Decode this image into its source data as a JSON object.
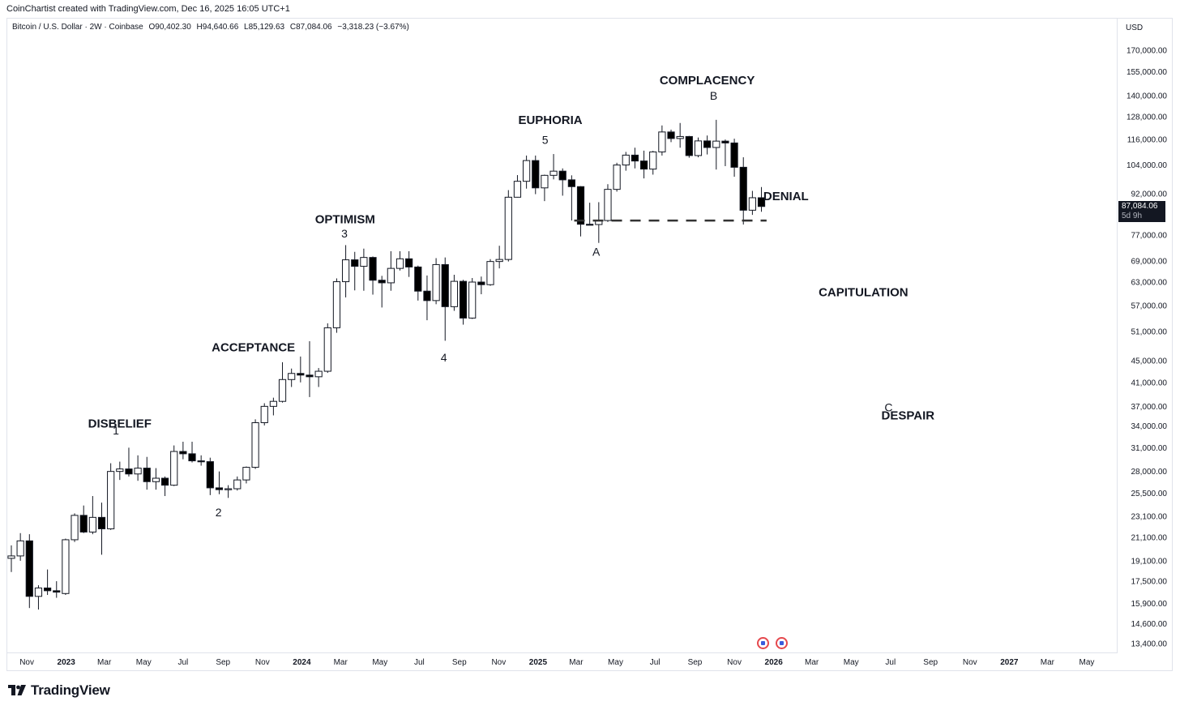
{
  "credit": "CoinChartist created with TradingView.com, Dec 16, 2025 16:05 UTC+1",
  "legend": {
    "symbol": "Bitcoin / U.S. Dollar · 2W · Coinbase",
    "open": "O90,402.30",
    "high": "H94,640.66",
    "low": "L85,129.63",
    "close": "C87,084.06",
    "change": "−3,318.23 (−3.67%)"
  },
  "currency": "USD",
  "last_price": {
    "value": "87,084.06",
    "countdown": "5d 9h"
  },
  "brand": "TradingView",
  "chart_data": {
    "type": "candlestick",
    "scale": "log",
    "ylim": [
      13000,
      185000
    ],
    "y_ticks": [
      170000,
      155000,
      140000,
      128000,
      116000,
      104000,
      92000,
      77000,
      69000,
      63000,
      57000,
      51000,
      45000,
      41000,
      37000,
      34000,
      31000,
      28000,
      25500,
      23100,
      21100,
      19100,
      17500,
      15900,
      14600,
      13400
    ],
    "y_tick_labels": [
      "170,000.00",
      "155,000.00",
      "140,000.00",
      "128,000.00",
      "116,000.00",
      "104,000.00",
      "92,000.00",
      "77,000.00",
      "69,000.00",
      "63,000.00",
      "57,000.00",
      "51,000.00",
      "45,000.00",
      "41,000.00",
      "37,000.00",
      "34,000.00",
      "31,000.00",
      "28,000.00",
      "25,500.00",
      "23,100.00",
      "21,100.00",
      "19,100.00",
      "17,500.00",
      "15,900.00",
      "14,600.00",
      "13,400.00"
    ],
    "x_start": "2022-10-03",
    "x_end": "2027-06-14",
    "x_ticks": [
      {
        "date": "2022-11-01",
        "label": "Nov",
        "bold": false
      },
      {
        "date": "2023-01-01",
        "label": "2023",
        "bold": true
      },
      {
        "date": "2023-03-01",
        "label": "Mar",
        "bold": false
      },
      {
        "date": "2023-05-01",
        "label": "May",
        "bold": false
      },
      {
        "date": "2023-07-01",
        "label": "Jul",
        "bold": false
      },
      {
        "date": "2023-09-01",
        "label": "Sep",
        "bold": false
      },
      {
        "date": "2023-11-01",
        "label": "Nov",
        "bold": false
      },
      {
        "date": "2024-01-01",
        "label": "2024",
        "bold": true
      },
      {
        "date": "2024-03-01",
        "label": "Mar",
        "bold": false
      },
      {
        "date": "2024-05-01",
        "label": "May",
        "bold": false
      },
      {
        "date": "2024-07-01",
        "label": "Jul",
        "bold": false
      },
      {
        "date": "2024-09-01",
        "label": "Sep",
        "bold": false
      },
      {
        "date": "2024-11-01",
        "label": "Nov",
        "bold": false
      },
      {
        "date": "2025-01-01",
        "label": "2025",
        "bold": true
      },
      {
        "date": "2025-03-01",
        "label": "Mar",
        "bold": false
      },
      {
        "date": "2025-05-01",
        "label": "May",
        "bold": false
      },
      {
        "date": "2025-07-01",
        "label": "Jul",
        "bold": false
      },
      {
        "date": "2025-09-01",
        "label": "Sep",
        "bold": false
      },
      {
        "date": "2025-11-01",
        "label": "Nov",
        "bold": false
      },
      {
        "date": "2026-01-01",
        "label": "2026",
        "bold": true
      },
      {
        "date": "2026-03-01",
        "label": "Mar",
        "bold": false
      },
      {
        "date": "2026-05-01",
        "label": "May",
        "bold": false
      },
      {
        "date": "2026-07-01",
        "label": "Jul",
        "bold": false
      },
      {
        "date": "2026-09-01",
        "label": "Sep",
        "bold": false
      },
      {
        "date": "2026-11-01",
        "label": "Nov",
        "bold": false
      },
      {
        "date": "2027-01-01",
        "label": "2027",
        "bold": true
      },
      {
        "date": "2027-03-01",
        "label": "Mar",
        "bold": false
      },
      {
        "date": "2027-05-01",
        "label": "May",
        "bold": false
      }
    ],
    "candles": [
      {
        "t": "2022-10-03",
        "o": 19300,
        "h": 20400,
        "l": 18200,
        "c": 19500
      },
      {
        "t": "2022-10-17",
        "o": 19500,
        "h": 21500,
        "l": 19100,
        "c": 20800
      },
      {
        "t": "2022-10-31",
        "o": 20800,
        "h": 21400,
        "l": 15600,
        "c": 16400
      },
      {
        "t": "2022-11-14",
        "o": 16400,
        "h": 17200,
        "l": 15500,
        "c": 17000
      },
      {
        "t": "2022-11-28",
        "o": 17000,
        "h": 18400,
        "l": 16500,
        "c": 16800
      },
      {
        "t": "2022-12-12",
        "o": 16800,
        "h": 17500,
        "l": 16300,
        "c": 16700
      },
      {
        "t": "2022-12-26",
        "o": 16600,
        "h": 21000,
        "l": 16500,
        "c": 20900
      },
      {
        "t": "2023-01-09",
        "o": 20900,
        "h": 23400,
        "l": 20700,
        "c": 23200
      },
      {
        "t": "2023-01-23",
        "o": 23200,
        "h": 24200,
        "l": 21500,
        "c": 21600
      },
      {
        "t": "2023-02-06",
        "o": 21600,
        "h": 25200,
        "l": 21400,
        "c": 23000
      },
      {
        "t": "2023-02-20",
        "o": 23000,
        "h": 24500,
        "l": 19600,
        "c": 21900
      },
      {
        "t": "2023-03-06",
        "o": 21900,
        "h": 29000,
        "l": 21800,
        "c": 28000
      },
      {
        "t": "2023-03-20",
        "o": 28000,
        "h": 29200,
        "l": 27000,
        "c": 28300
      },
      {
        "t": "2023-04-03",
        "o": 28300,
        "h": 31000,
        "l": 27400,
        "c": 27700
      },
      {
        "t": "2023-04-17",
        "o": 27700,
        "h": 30000,
        "l": 26900,
        "c": 28400
      },
      {
        "t": "2023-05-01",
        "o": 28400,
        "h": 29800,
        "l": 25900,
        "c": 26800
      },
      {
        "t": "2023-05-15",
        "o": 26800,
        "h": 28400,
        "l": 25900,
        "c": 27200
      },
      {
        "t": "2023-05-29",
        "o": 27200,
        "h": 27400,
        "l": 25200,
        "c": 26400
      },
      {
        "t": "2023-06-12",
        "o": 26400,
        "h": 31300,
        "l": 26300,
        "c": 30500
      },
      {
        "t": "2023-06-26",
        "o": 30500,
        "h": 31800,
        "l": 29500,
        "c": 30200
      },
      {
        "t": "2023-07-10",
        "o": 30200,
        "h": 31800,
        "l": 29100,
        "c": 29300
      },
      {
        "t": "2023-07-24",
        "o": 29300,
        "h": 30000,
        "l": 28700,
        "c": 29200
      },
      {
        "t": "2023-08-07",
        "o": 29200,
        "h": 29700,
        "l": 25300,
        "c": 26100
      },
      {
        "t": "2023-08-21",
        "o": 26100,
        "h": 28000,
        "l": 25400,
        "c": 25900
      },
      {
        "t": "2023-09-04",
        "o": 25900,
        "h": 26400,
        "l": 25000,
        "c": 26000
      },
      {
        "t": "2023-09-18",
        "o": 26000,
        "h": 27400,
        "l": 25800,
        "c": 27000
      },
      {
        "t": "2023-10-02",
        "o": 27000,
        "h": 28600,
        "l": 26600,
        "c": 28500
      },
      {
        "t": "2023-10-16",
        "o": 28500,
        "h": 35000,
        "l": 28300,
        "c": 34500
      },
      {
        "t": "2023-10-30",
        "o": 34500,
        "h": 37500,
        "l": 34100,
        "c": 37000
      },
      {
        "t": "2023-11-13",
        "o": 37000,
        "h": 38400,
        "l": 35600,
        "c": 37800
      },
      {
        "t": "2023-11-27",
        "o": 37800,
        "h": 44700,
        "l": 37600,
        "c": 41500
      },
      {
        "t": "2023-12-11",
        "o": 41500,
        "h": 43500,
        "l": 40200,
        "c": 42600
      },
      {
        "t": "2023-12-25",
        "o": 42600,
        "h": 45800,
        "l": 41000,
        "c": 42300
      },
      {
        "t": "2024-01-08",
        "o": 42300,
        "h": 48900,
        "l": 38500,
        "c": 42000
      },
      {
        "t": "2024-01-22",
        "o": 42000,
        "h": 43600,
        "l": 40200,
        "c": 43000
      },
      {
        "t": "2024-02-05",
        "o": 43000,
        "h": 52800,
        "l": 42700,
        "c": 51800
      },
      {
        "t": "2024-02-19",
        "o": 51800,
        "h": 64000,
        "l": 50700,
        "c": 63100
      },
      {
        "t": "2024-03-04",
        "o": 63100,
        "h": 73800,
        "l": 59000,
        "c": 69300
      },
      {
        "t": "2024-03-18",
        "o": 69300,
        "h": 71700,
        "l": 60800,
        "c": 67400
      },
      {
        "t": "2024-04-01",
        "o": 67400,
        "h": 72700,
        "l": 60700,
        "c": 70000
      },
      {
        "t": "2024-04-15",
        "o": 70000,
        "h": 70300,
        "l": 59700,
        "c": 63500
      },
      {
        "t": "2024-04-29",
        "o": 63500,
        "h": 64700,
        "l": 56500,
        "c": 62800
      },
      {
        "t": "2024-05-13",
        "o": 62800,
        "h": 71900,
        "l": 60700,
        "c": 66800
      },
      {
        "t": "2024-05-27",
        "o": 66800,
        "h": 71900,
        "l": 66200,
        "c": 69600
      },
      {
        "t": "2024-06-10",
        "o": 69600,
        "h": 71900,
        "l": 64400,
        "c": 67200
      },
      {
        "t": "2024-06-24",
        "o": 67200,
        "h": 67600,
        "l": 58200,
        "c": 60600
      },
      {
        "t": "2024-07-08",
        "o": 60600,
        "h": 64800,
        "l": 53500,
        "c": 58200
      },
      {
        "t": "2024-07-22",
        "o": 58200,
        "h": 69800,
        "l": 57300,
        "c": 67900
      },
      {
        "t": "2024-08-05",
        "o": 67900,
        "h": 70000,
        "l": 49000,
        "c": 56700
      },
      {
        "t": "2024-08-19",
        "o": 56700,
        "h": 65000,
        "l": 55700,
        "c": 63200
      },
      {
        "t": "2024-09-02",
        "o": 63200,
        "h": 63600,
        "l": 52500,
        "c": 54000
      },
      {
        "t": "2024-09-16",
        "o": 54000,
        "h": 64100,
        "l": 53800,
        "c": 63000
      },
      {
        "t": "2024-09-30",
        "o": 63000,
        "h": 64500,
        "l": 59800,
        "c": 62300
      },
      {
        "t": "2024-10-14",
        "o": 62300,
        "h": 69500,
        "l": 62000,
        "c": 68800
      },
      {
        "t": "2024-10-28",
        "o": 68800,
        "h": 73600,
        "l": 66800,
        "c": 69400
      },
      {
        "t": "2024-11-11",
        "o": 69400,
        "h": 93400,
        "l": 68800,
        "c": 90600
      },
      {
        "t": "2024-11-25",
        "o": 90600,
        "h": 99600,
        "l": 90500,
        "c": 97000
      },
      {
        "t": "2024-12-09",
        "o": 97000,
        "h": 108300,
        "l": 94000,
        "c": 106000
      },
      {
        "t": "2024-12-23",
        "o": 106000,
        "h": 108300,
        "l": 91800,
        "c": 94300
      },
      {
        "t": "2025-01-06",
        "o": 94300,
        "h": 99800,
        "l": 89100,
        "c": 99500
      },
      {
        "t": "2025-01-20",
        "o": 99500,
        "h": 109000,
        "l": 97800,
        "c": 101300
      },
      {
        "t": "2025-02-03",
        "o": 101300,
        "h": 102500,
        "l": 91200,
        "c": 97600
      },
      {
        "t": "2025-02-17",
        "o": 97600,
        "h": 99500,
        "l": 82000,
        "c": 94800
      },
      {
        "t": "2025-03-03",
        "o": 94800,
        "h": 95000,
        "l": 76600,
        "c": 80700
      },
      {
        "t": "2025-03-17",
        "o": 80700,
        "h": 88500,
        "l": 80500,
        "c": 80600
      },
      {
        "t": "2025-03-31",
        "o": 80600,
        "h": 88700,
        "l": 74500,
        "c": 82000
      },
      {
        "t": "2025-04-14",
        "o": 82000,
        "h": 95800,
        "l": 81500,
        "c": 93700
      },
      {
        "t": "2025-04-28",
        "o": 93700,
        "h": 105000,
        "l": 92800,
        "c": 104000
      },
      {
        "t": "2025-05-12",
        "o": 104000,
        "h": 110000,
        "l": 101500,
        "c": 108500
      },
      {
        "t": "2025-05-26",
        "o": 108500,
        "h": 112000,
        "l": 102500,
        "c": 105800
      },
      {
        "t": "2025-06-09",
        "o": 105800,
        "h": 110600,
        "l": 98200,
        "c": 102200
      },
      {
        "t": "2025-06-23",
        "o": 102200,
        "h": 110500,
        "l": 99800,
        "c": 110000
      },
      {
        "t": "2025-07-07",
        "o": 110000,
        "h": 123200,
        "l": 108300,
        "c": 119800
      },
      {
        "t": "2025-07-21",
        "o": 119800,
        "h": 121000,
        "l": 114700,
        "c": 116500
      },
      {
        "t": "2025-08-04",
        "o": 116500,
        "h": 124500,
        "l": 112000,
        "c": 117500
      },
      {
        "t": "2025-08-18",
        "o": 117500,
        "h": 117800,
        "l": 107300,
        "c": 108300
      },
      {
        "t": "2025-09-01",
        "o": 108300,
        "h": 117000,
        "l": 107500,
        "c": 115300
      },
      {
        "t": "2025-09-15",
        "o": 115300,
        "h": 118000,
        "l": 108800,
        "c": 112100
      },
      {
        "t": "2025-09-29",
        "o": 112100,
        "h": 126200,
        "l": 102000,
        "c": 115200
      },
      {
        "t": "2025-10-13",
        "o": 115200,
        "h": 116000,
        "l": 103500,
        "c": 114300
      },
      {
        "t": "2025-10-27",
        "o": 114300,
        "h": 116400,
        "l": 98900,
        "c": 103000
      },
      {
        "t": "2025-11-10",
        "o": 103000,
        "h": 107500,
        "l": 80600,
        "c": 85700
      },
      {
        "t": "2025-11-24",
        "o": 85700,
        "h": 93100,
        "l": 84000,
        "c": 90400
      },
      {
        "t": "2025-12-08",
        "o": 90400,
        "h": 94640,
        "l": 85130,
        "c": 87084
      }
    ],
    "support_line": {
      "price": 82000,
      "from": "2025-03-03",
      "to": "2025-12-31"
    },
    "phase_labels": [
      {
        "text": "DISBELIEF",
        "date": "2023-03-25",
        "price": 33800
      },
      {
        "text": "ACCEPTANCE",
        "date": "2023-10-18",
        "price": 46800
      },
      {
        "text": "OPTIMISM",
        "date": "2024-03-08",
        "price": 81000
      },
      {
        "text": "EUPHORIA",
        "date": "2025-01-20",
        "price": 124000
      },
      {
        "text": "COMPLACENCY",
        "date": "2025-09-20",
        "price": 147000
      },
      {
        "text": "DENIAL",
        "date": "2026-01-20",
        "price": 89500
      },
      {
        "text": "CAPITULATION",
        "date": "2026-05-20",
        "price": 59300
      },
      {
        "text": "DESPAIR",
        "date": "2026-07-28",
        "price": 35000
      }
    ],
    "wave_labels": [
      {
        "text": "1",
        "date": "2023-03-19",
        "price": 32800
      },
      {
        "text": "2",
        "date": "2023-08-25",
        "price": 23100
      },
      {
        "text": "3",
        "date": "2024-03-07",
        "price": 76300
      },
      {
        "text": "4",
        "date": "2024-08-08",
        "price": 44800
      },
      {
        "text": "5",
        "date": "2025-01-12",
        "price": 113800
      },
      {
        "text": "A",
        "date": "2025-04-01",
        "price": 70500
      },
      {
        "text": "B",
        "date": "2025-09-30",
        "price": 137500
      },
      {
        "text": "C",
        "date": "2026-06-28",
        "price": 36200
      }
    ]
  }
}
